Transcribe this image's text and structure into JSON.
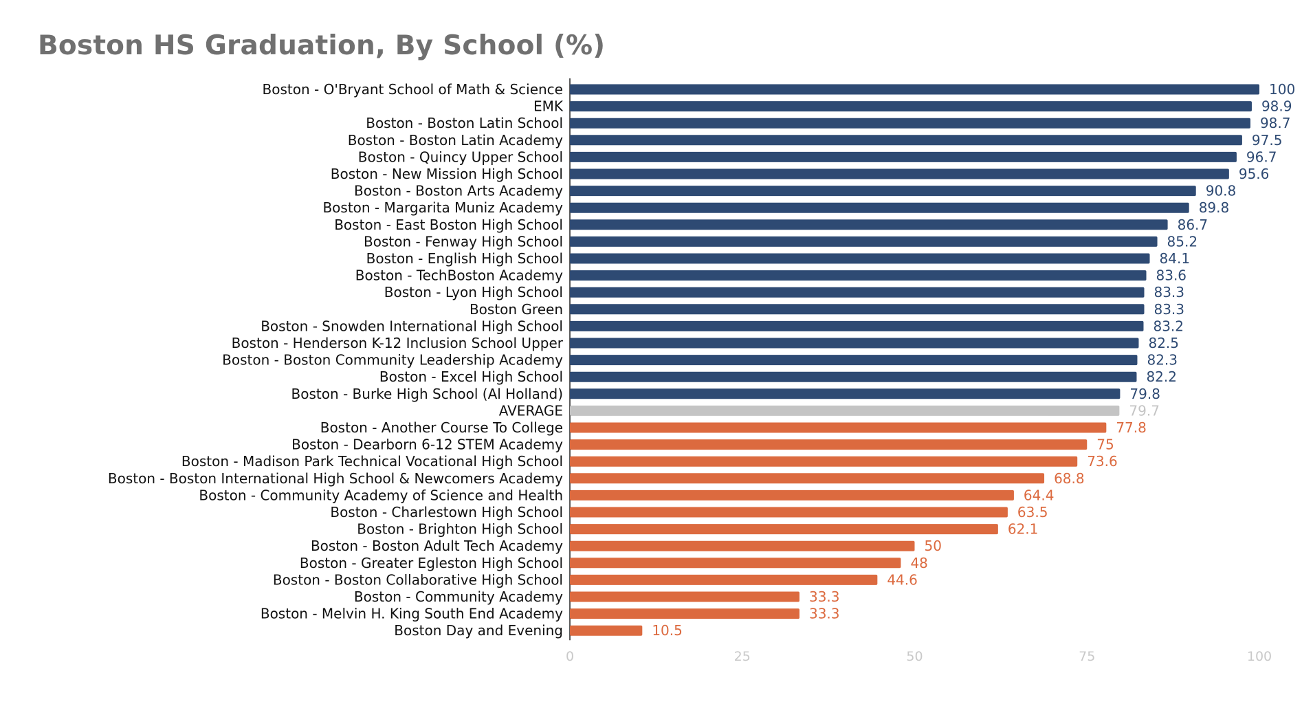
{
  "chart_data": {
    "type": "bar",
    "orientation": "horizontal",
    "title": "Boston HS Graduation, By School (%)",
    "xlabel": "",
    "ylabel": "",
    "xlim": [
      0,
      100
    ],
    "xticks": [
      0,
      25,
      50,
      75,
      100
    ],
    "grid": false,
    "legend": "none",
    "colors": {
      "above": "#2e4a73",
      "average": "#c4c4c4",
      "below": "#dc6a3f"
    },
    "categories": [
      "Boston - O'Bryant School of Math & Science",
      "EMK",
      "Boston - Boston Latin School",
      "Boston - Boston Latin Academy",
      "Boston - Quincy Upper School",
      "Boston - New Mission High School",
      "Boston - Boston Arts Academy",
      "Boston - Margarita Muniz Academy",
      "Boston - East Boston High School",
      "Boston - Fenway High School",
      "Boston - English High School",
      "Boston - TechBoston Academy",
      "Boston - Lyon High School",
      "Boston Green",
      "Boston - Snowden International High School",
      "Boston - Henderson K-12 Inclusion School Upper",
      "Boston - Boston Community Leadership Academy",
      "Boston - Excel High School",
      "Boston - Burke High School (Al Holland)",
      "AVERAGE",
      "Boston - Another Course To College",
      "Boston - Dearborn 6-12 STEM Academy",
      "Boston - Madison Park Technical Vocational High School",
      "Boston - Boston International High School & Newcomers Academy",
      "Boston - Community Academy of Science and Health",
      "Boston - Charlestown High School",
      "Boston - Brighton High School",
      "Boston - Boston Adult Tech Academy",
      "Boston - Greater Egleston High School",
      "Boston - Boston Collaborative High School",
      "Boston - Community Academy",
      "Boston - Melvin H. King South End Academy",
      "Boston Day and Evening"
    ],
    "values": [
      100,
      98.9,
      98.7,
      97.5,
      96.7,
      95.6,
      90.8,
      89.8,
      86.7,
      85.2,
      84.1,
      83.6,
      83.3,
      83.3,
      83.2,
      82.5,
      82.3,
      82.2,
      79.8,
      79.7,
      77.8,
      75,
      73.6,
      68.8,
      64.4,
      63.5,
      62.1,
      50,
      48,
      44.6,
      33.3,
      33.3,
      10.5
    ],
    "groups": [
      "above",
      "above",
      "above",
      "above",
      "above",
      "above",
      "above",
      "above",
      "above",
      "above",
      "above",
      "above",
      "above",
      "above",
      "above",
      "above",
      "above",
      "above",
      "above",
      "average",
      "below",
      "below",
      "below",
      "below",
      "below",
      "below",
      "below",
      "below",
      "below",
      "below",
      "below",
      "below",
      "below"
    ]
  }
}
